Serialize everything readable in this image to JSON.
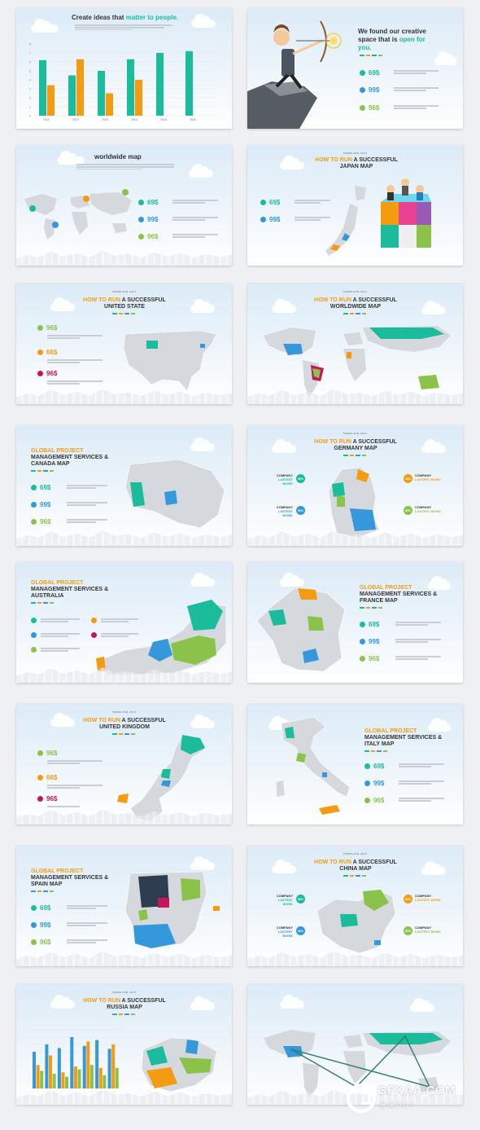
{
  "colors": {
    "teal": "#1abc9c",
    "orange": "#f39c12",
    "blue": "#3498db",
    "green": "#8bc34a",
    "magenta": "#c2185b",
    "navy": "#2c3e50",
    "grey": "#d5d8dc"
  },
  "slides": {
    "s1": {
      "title_a": "Create ideas that ",
      "title_b": "matter to people.",
      "chart_data": {
        "type": "bar",
        "categories": [
          "2011",
          "2012",
          "2013",
          "2014",
          "2015",
          "2016"
        ],
        "series": [
          {
            "values": [
              6.2,
              4.5,
              5.0,
              6.3,
              7.0,
              7.2
            ]
          },
          {
            "values": [
              3.4,
              6.3,
              2.5,
              4.0,
              0,
              0
            ]
          }
        ],
        "ylim": [
          0,
          8
        ],
        "yticks": [
          "0",
          "1",
          "2",
          "3",
          "4",
          "5",
          "6",
          "7",
          "8"
        ]
      }
    },
    "s2": {
      "title_a": "We found our creative",
      "title_b": "space that is ",
      "title_c": "open for",
      "title_d": "you.",
      "stats": [
        "69$",
        "99$",
        "96$"
      ]
    },
    "s3": {
      "title": "worldwide map",
      "stats": [
        "69$",
        "99$",
        "96$"
      ]
    },
    "s4": {
      "tpl": "TEMPLATE 2017",
      "title_a": "HOW TO RUN ",
      "title_b": "A SUCCESSFUL",
      "title_c": "JAPAN MAP",
      "stats": [
        "69$",
        "99$"
      ]
    },
    "s5": {
      "tpl": "TEMPLATE 2017",
      "title_a": "HOW TO RUN ",
      "title_b": "A SUCCESSFUL",
      "title_c": "UNITED STATE",
      "stats": [
        "96$",
        "66$",
        "96$"
      ]
    },
    "s6": {
      "tpl": "TEMPLATE 2017",
      "title_a": "HOW TO RUN ",
      "title_b": "A SUCCESSFUL",
      "title_c": "WORLDWIDE MAP"
    },
    "s7": {
      "title_a": "GLOBAL PROJECT",
      "title_b": "MANAGEMENT SERVICES &",
      "title_c": "CANADA MAP",
      "stats": [
        "69$",
        "99$",
        "96$"
      ]
    },
    "s8": {
      "tpl": "TEMPLATE 2017",
      "title_a": "HOW TO RUN ",
      "title_b": "A SUCCESSFUL",
      "title_c": "GERMANY MAP",
      "company": "COMPANY",
      "work": "LASTEST WORK",
      "pct": "60%"
    },
    "s9": {
      "title_a": "GLOBAL PROJECT",
      "title_b": "MANAGEMENT SERVICES &",
      "title_c": "AUSTRALIA"
    },
    "s10": {
      "title_a": "GLOBAL PROJECT",
      "title_b": "MANAGEMENT SERVICES &",
      "title_c": "FRANCE MAP",
      "stats": [
        "69$",
        "99$",
        "96$"
      ]
    },
    "s11": {
      "tpl": "TEMPLATE 2017",
      "title_a": "HOW TO RUN ",
      "title_b": "A SUCCESSFUL",
      "title_c": "UNITED KINGDOM",
      "stats": [
        "96$",
        "66$",
        "96$"
      ]
    },
    "s12": {
      "title_a": "GLOBAL PROJECT",
      "title_b": "MANAGEMENT SERVICES &",
      "title_c": "ITALY MAP",
      "stats": [
        "69$",
        "99$",
        "96$"
      ]
    },
    "s13": {
      "title_a": "GLOBAL PROJECT",
      "title_b": "MANAGEMENT SERVICES &",
      "title_c": "SPAIN MAP",
      "stats": [
        "69$",
        "99$",
        "96$"
      ]
    },
    "s14": {
      "tpl": "TEMPLATE 2017",
      "title_a": "HOW TO RUN ",
      "title_b": "A SUCCESSFUL",
      "title_c": "CHINA MAP",
      "company": "COMPANY",
      "work": "LASTEST WORK",
      "pct": "60%"
    },
    "s15": {
      "tpl": "TEMPLATE 2017",
      "title_a": "HOW TO RUN ",
      "title_b": "A SUCCESSFUL",
      "title_c": "RUSSIA MAP",
      "chart_data": {
        "type": "bar",
        "categories": [
          "1",
          "2",
          "3",
          "4",
          "5",
          "6",
          "7"
        ],
        "series": [
          {
            "values": [
              5,
              6,
              5.5,
              7,
              5.8,
              6.6,
              5.4
            ]
          },
          {
            "values": [
              3.2,
              4.5,
              2.2,
              3.0,
              6.4,
              2.8,
              6.0
            ]
          },
          {
            "values": [
              2.4,
              2.0,
              1.6,
              2.6,
              3.2,
              1.8,
              2.8
            ]
          }
        ],
        "ylim": [
          0,
          8
        ]
      }
    },
    "s16": {}
  },
  "watermark": {
    "logo": "GFXAA.COM",
    "sub": "贤夫PPT"
  }
}
